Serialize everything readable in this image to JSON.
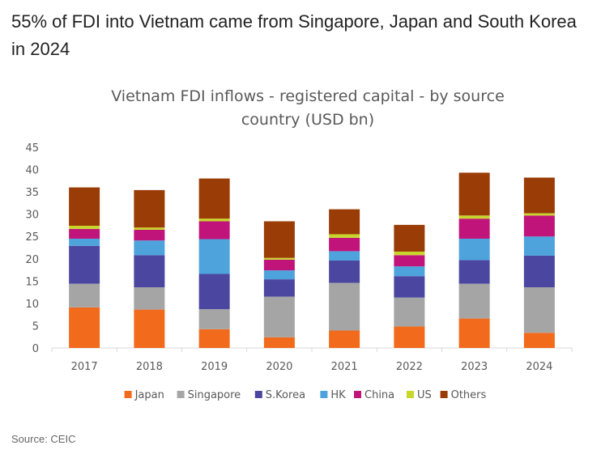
{
  "headline": "55% of FDI into Vietnam came from Singapore, Japan and South Korea in 2024",
  "source": "Source: CEIC",
  "chart_data": {
    "type": "bar",
    "stacked": true,
    "title_lines": [
      "Vietnam FDI inflows  - registered capital - by source",
      "country (USD bn)"
    ],
    "categories": [
      "2017",
      "2018",
      "2019",
      "2020",
      "2021",
      "2022",
      "2023",
      "2024"
    ],
    "series": [
      {
        "name": "Japan",
        "color": "#f26a1b",
        "values": [
          9.1,
          8.6,
          4.2,
          2.4,
          3.9,
          4.8,
          6.6,
          3.4
        ]
      },
      {
        "name": "Singapore",
        "color": "#a5a5a5",
        "values": [
          5.3,
          5.0,
          4.5,
          9.1,
          10.7,
          6.5,
          7.8,
          10.2
        ]
      },
      {
        "name": "S.Korea",
        "color": "#4b47a0",
        "values": [
          8.5,
          7.2,
          7.9,
          3.9,
          5.0,
          4.8,
          5.3,
          7.1
        ]
      },
      {
        "name": "HK",
        "color": "#4ea3dc",
        "values": [
          1.6,
          3.3,
          7.8,
          2.0,
          2.1,
          2.2,
          4.8,
          4.3
        ]
      },
      {
        "name": "China",
        "color": "#c0147a",
        "values": [
          2.2,
          2.4,
          4.0,
          2.4,
          3.0,
          2.5,
          4.5,
          4.7
        ]
      },
      {
        "name": "US",
        "color": "#c8d62b",
        "values": [
          0.7,
          0.5,
          0.6,
          0.4,
          0.8,
          0.8,
          0.7,
          0.5
        ]
      },
      {
        "name": "Others",
        "color": "#9a3c06",
        "values": [
          8.6,
          8.4,
          9.0,
          8.2,
          5.6,
          6.0,
          9.6,
          8.0
        ]
      }
    ],
    "ylim": [
      0,
      45
    ],
    "yticks": [
      "0",
      "5",
      "10",
      "15",
      "20",
      "25",
      "30",
      "35",
      "40",
      "45"
    ],
    "legend_position": "bottom"
  }
}
